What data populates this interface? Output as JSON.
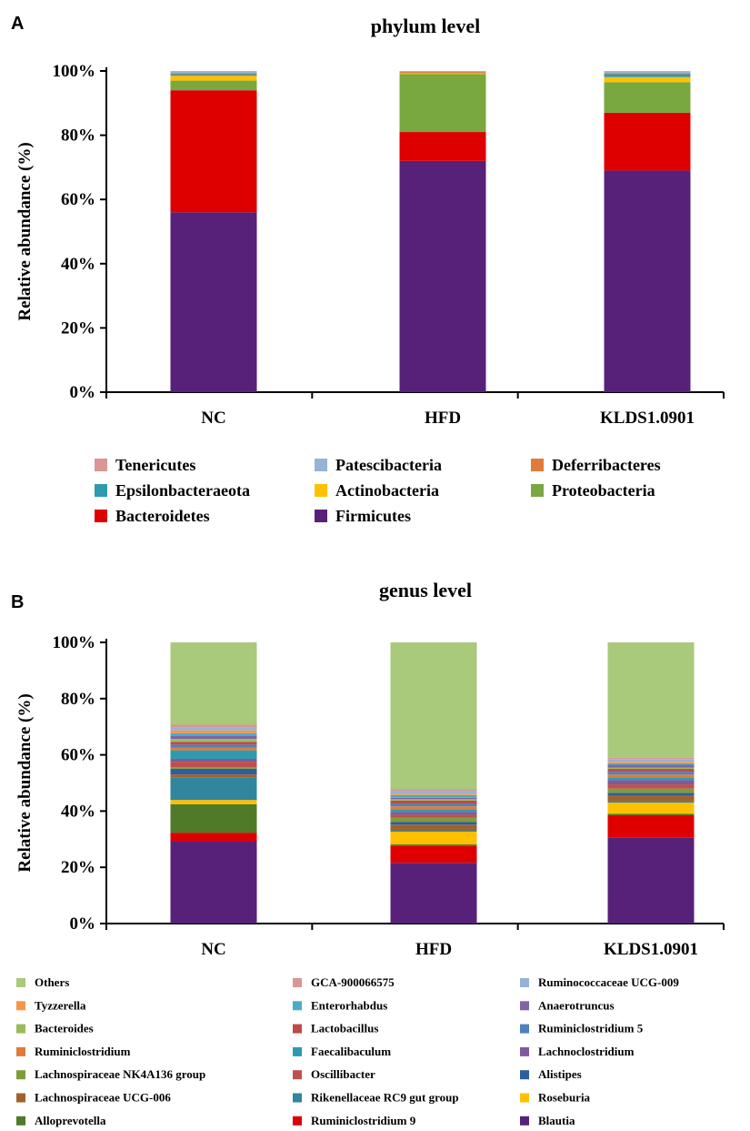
{
  "chart_data": [
    {
      "type": "bar",
      "stacked": true,
      "panel": "A",
      "title": "phylum   level",
      "ylabel": "Relative abundance (%)",
      "xlabel": "",
      "ylim": [
        0,
        100
      ],
      "yticks": [
        "0%",
        "20%",
        "40%",
        "60%",
        "80%",
        "100%"
      ],
      "categories": [
        "NC",
        "HFD",
        "KLDS1.0901"
      ],
      "legend_position": "bottom",
      "series": [
        {
          "name": "Firmicutes",
          "color": "#57217A",
          "values": [
            56,
            72,
            69
          ]
        },
        {
          "name": "Bacteroidetes",
          "color": "#DE0000",
          "values": [
            38,
            9,
            18
          ]
        },
        {
          "name": "Proteobacteria",
          "color": "#78A83F",
          "values": [
            3,
            18,
            9.5
          ]
        },
        {
          "name": "Actinobacteria",
          "color": "#FFC000",
          "values": [
            1.5,
            0.3,
            1.6
          ]
        },
        {
          "name": "Epsilonbacteraeota",
          "color": "#2E9AAE",
          "values": [
            0.5,
            0.1,
            0.9
          ]
        },
        {
          "name": "Deferribacteres",
          "color": "#E07B39",
          "values": [
            0.3,
            0.3,
            0.3
          ]
        },
        {
          "name": "Patescibacteria",
          "color": "#95B3D7",
          "values": [
            0.5,
            0.2,
            0.5
          ]
        },
        {
          "name": "Tenericutes",
          "color": "#D99694",
          "values": [
            0.2,
            0.1,
            0.2
          ]
        }
      ],
      "legend_order": [
        "Tenericutes",
        "Patescibacteria",
        "Deferribacteres",
        "Epsilonbacteraeota",
        "Actinobacteria",
        "Proteobacteria",
        "Bacteroidetes",
        "Firmicutes"
      ]
    },
    {
      "type": "bar",
      "stacked": true,
      "panel": "B",
      "title": "genus   level",
      "ylabel": "Relative abundance (%)",
      "xlabel": "",
      "ylim": [
        0,
        100
      ],
      "yticks": [
        "0%",
        "20%",
        "40%",
        "60%",
        "80%",
        "100%"
      ],
      "categories": [
        "NC",
        "HFD",
        "KLDS1.0901"
      ],
      "legend_position": "bottom",
      "series": [
        {
          "name": "Blautia",
          "color": "#57217A",
          "values": [
            29,
            21.5,
            30.5
          ]
        },
        {
          "name": "Ruminiclostridium 9",
          "color": "#DE0000",
          "values": [
            3,
            6,
            8
          ]
        },
        {
          "name": "Alloprevotella",
          "color": "#4F7A28",
          "values": [
            10,
            0.5,
            0.5
          ]
        },
        {
          "name": "Roseburia",
          "color": "#FFC000",
          "values": [
            1.5,
            4.5,
            4
          ]
        },
        {
          "name": "Rikenellaceae RC9 gut group",
          "color": "#31859C",
          "values": [
            8,
            0.5,
            0.5
          ]
        },
        {
          "name": "Lachnospiraceae UCG-006",
          "color": "#A0622D",
          "values": [
            1,
            2,
            2
          ]
        },
        {
          "name": "Alistipes",
          "color": "#2E5E9E",
          "values": [
            2,
            1,
            1
          ]
        },
        {
          "name": "Lachnospiraceae NK4A136 group",
          "color": "#7E9D3A",
          "values": [
            0.5,
            1.5,
            1.5
          ]
        },
        {
          "name": "Oscillibacter",
          "color": "#C0504D",
          "values": [
            2,
            1,
            1.5
          ]
        },
        {
          "name": "Lachnoclostridium",
          "color": "#7F5A9E",
          "values": [
            1,
            1,
            1.5
          ]
        },
        {
          "name": "Faecalibaculum",
          "color": "#2E9AAE",
          "values": [
            3,
            1,
            1
          ]
        },
        {
          "name": "Ruminiclostridium",
          "color": "#E07B39",
          "values": [
            1,
            1,
            1
          ]
        },
        {
          "name": "Ruminiclostridium 5",
          "color": "#4F81BD",
          "values": [
            1,
            1,
            1
          ]
        },
        {
          "name": "Lactobacillus",
          "color": "#BE4B48",
          "values": [
            1,
            1,
            1
          ]
        },
        {
          "name": "Bacteroides",
          "color": "#9BBB59",
          "values": [
            1,
            0.5,
            0.5
          ]
        },
        {
          "name": "Anaerotruncus",
          "color": "#8064A2",
          "values": [
            1,
            0.5,
            1
          ]
        },
        {
          "name": "Enterorhabdus",
          "color": "#4BACC6",
          "values": [
            1,
            1,
            0.5
          ]
        },
        {
          "name": "Tyzzerella",
          "color": "#F79646",
          "values": [
            1,
            0.5,
            0.5
          ]
        },
        {
          "name": "Ruminococcaceae UCG-009",
          "color": "#95B3D7",
          "values": [
            1,
            1,
            1
          ]
        },
        {
          "name": "GCA-900066575",
          "color": "#D99694",
          "values": [
            1,
            0.5,
            0.5
          ]
        },
        {
          "name": "Others",
          "color": "#A9C97B",
          "values": [
            29,
            52,
            41
          ]
        }
      ],
      "legend_order": [
        "Others",
        "GCA-900066575",
        "Ruminococcaceae UCG-009",
        "Tyzzerella",
        "Enterorhabdus",
        "Anaerotruncus",
        "Bacteroides",
        "Lactobacillus",
        "Ruminiclostridium 5",
        "Ruminiclostridium",
        "Faecalibaculum",
        "Lachnoclostridium",
        "Lachnospiraceae NK4A136 group",
        "Oscillibacter",
        "Alistipes",
        "Lachnospiraceae UCG-006",
        "Rikenellaceae RC9 gut group",
        "Roseburia",
        "Alloprevotella",
        "Ruminiclostridium 9",
        "Blautia"
      ]
    }
  ]
}
